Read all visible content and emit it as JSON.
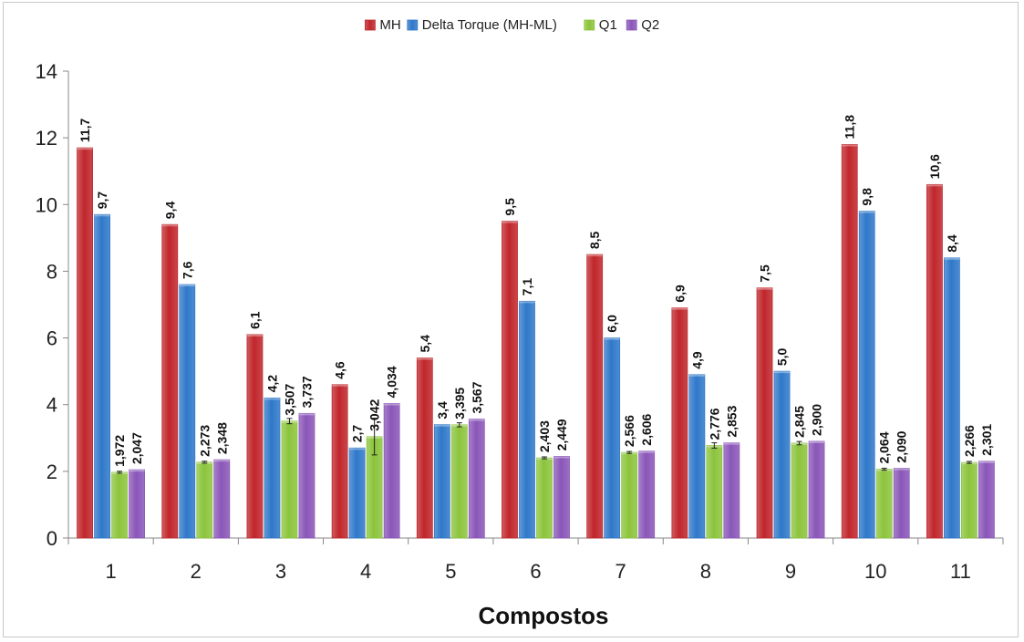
{
  "chart_data": {
    "type": "bar",
    "title": "",
    "xlabel": "Compostos",
    "ylabel": "",
    "ylim": [
      0,
      14
    ],
    "yticks": [
      "0",
      "2",
      "4",
      "6",
      "8",
      "10",
      "12",
      "14"
    ],
    "categories": [
      "1",
      "2",
      "3",
      "4",
      "5",
      "6",
      "7",
      "8",
      "9",
      "10",
      "11"
    ],
    "legend_position": "top-center",
    "grid": false,
    "series": [
      {
        "name": "MH",
        "color": "#c0262b",
        "values": [
          11.7,
          9.4,
          6.1,
          4.6,
          5.4,
          9.5,
          8.5,
          6.9,
          7.5,
          11.8,
          10.6
        ],
        "labels": [
          "11,7",
          "9,4",
          "6,1",
          "4,6",
          "5,4",
          "9,5",
          "8,5",
          "6,9",
          "7,5",
          "11,8",
          "10,6"
        ]
      },
      {
        "name": "Delta Torque (MH-ML)",
        "color": "#2f78c9",
        "values": [
          9.7,
          7.6,
          4.2,
          2.7,
          3.4,
          7.1,
          6.0,
          4.9,
          5.0,
          9.8,
          8.4
        ],
        "labels": [
          "9,7",
          "7,6",
          "4,2",
          "2,7",
          "3,4",
          "7,1",
          "6,0",
          "4,9",
          "5,0",
          "9,8",
          "8,4"
        ]
      },
      {
        "name": "Q1",
        "color": "#8cc43c",
        "values": [
          1.972,
          2.273,
          3.507,
          3.042,
          3.395,
          2.403,
          2.566,
          2.776,
          2.845,
          2.064,
          2.266
        ],
        "labels": [
          "1,972",
          "2,273",
          "3,507",
          "3,042",
          "3,395",
          "2,403",
          "2,566",
          "2,776",
          "2,845",
          "2,064",
          "2,266"
        ],
        "errors": [
          0.03,
          0.03,
          0.08,
          0.55,
          0.06,
          0.03,
          0.03,
          0.08,
          0.05,
          0.03,
          0.03
        ]
      },
      {
        "name": "Q2",
        "color": "#8a56b8",
        "values": [
          2.047,
          2.348,
          3.737,
          4.034,
          3.567,
          2.449,
          2.606,
          2.853,
          2.9,
          2.09,
          2.301
        ],
        "labels": [
          "2,047",
          "2,348",
          "3,737",
          "4,034",
          "3,567",
          "2,449",
          "2,606",
          "2,853",
          "2,900",
          "2,090",
          "2,301"
        ]
      }
    ]
  }
}
